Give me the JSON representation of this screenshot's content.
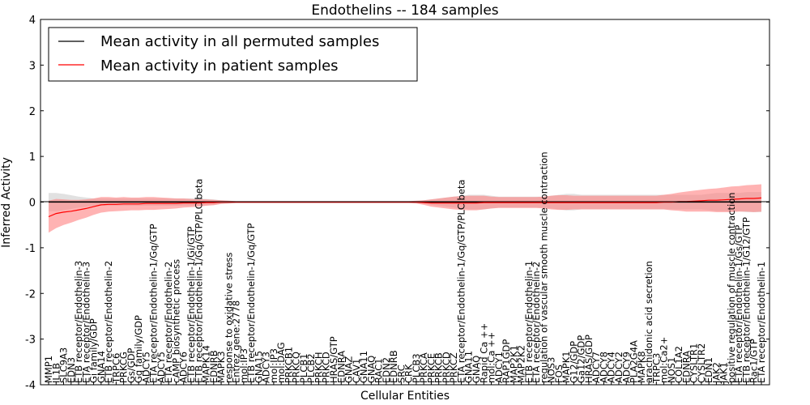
{
  "chart_data": {
    "type": "line",
    "title": "Endothelins -- 184 samples",
    "xlabel": "Cellular Entities",
    "ylabel": "Inferred Activity",
    "ylim": [
      -4,
      4
    ],
    "yticks": [
      -4,
      -3,
      -2,
      -1,
      0,
      1,
      2,
      3,
      4
    ],
    "grid": false,
    "legend_position": "top-left",
    "categories": [
      "MMP1",
      "IL1B",
      "SLC9A3",
      "EDN3",
      "ETB receptor/Endothelin-3",
      "ETA receptor/Endothelin-3",
      "Gi family/GDP",
      "GNA14",
      "ETB receptor/Endothelin-2",
      "TRPC6",
      "PRKCG",
      "Gs/GDP",
      "Gq family/GDP",
      "ADCY5",
      "ETA receptor/Endothelin-1/Gq/GTP",
      "ADCY5",
      "ETA receptor/Endothelin-2",
      "cAMP biosynthetic process",
      "ADCY6",
      "ETB receptor/Endothelin-1/Gi/GTP",
      "ETB receptor/Endothelin-1/Gq/GTP/PLC beta",
      "MAPK14",
      "EDNRB",
      "MAPK3",
      "response to oxidative stress",
      "Entrez gene:2778",
      "mol:IP3",
      "ETB receptor/Endothelin-1/Gq/GTP",
      "GNA15",
      "ADCY3",
      "mol:IP3",
      "mol:DAG",
      "PRKCB1",
      "PRKCQ",
      "PLCB1",
      "PLCB2",
      "PRKCH",
      "PRKCD",
      "HRAS/GTP",
      "EDNRA",
      "GNAZ",
      "CAV1",
      "GNA11",
      "GNAQ",
      "RAC1",
      "EDN2",
      "EDNRB",
      "SRC",
      "CRK",
      "PLCB3",
      "PRKCA",
      "PRKCE",
      "PRKCB",
      "PRKCD",
      "PRKCZ",
      "ETA receptor/Endothelin-1/Gq/GTP/PLC beta",
      "GNA11",
      "GNAQ",
      "Rapid Ca ++",
      "mol:Ca ++",
      "ADCY1",
      "RAP1GDP",
      "MAP2K1",
      "MAP2K2",
      "ETB receptor/Endothelin-1",
      "ETA receptor/Endothelin-2",
      "regulation of vascular smooth muscle contraction",
      "NOS3",
      "FOS",
      "MAPK1",
      "G12/GDP",
      "Ga12/GDP",
      "HRAS/GDP",
      "ADCY7",
      "ADCY8",
      "ADCY4",
      "ADCY2",
      "ADCY9",
      "PLA2G4A",
      "MAPK8",
      "arachidonic acid secretion",
      "TRPC3",
      "mol:Ca2+",
      "NOS1",
      "COL1A2",
      "EDNRA",
      "CYSLTR1",
      "CYSLTR2",
      "EDN1",
      "JAK2",
      "JAK1",
      "positive regulation of muscle contraction",
      "ETA receptor/Endothelin-1/Gs/GTP",
      "ETB receptor/Endothelin-1/G12/GTP",
      "Rac1/GTP",
      "ETA receptor/Endothelin-1"
    ],
    "series": [
      {
        "name": "Mean activity in all permuted samples",
        "color": "#000000",
        "values": [
          0.0,
          0.0,
          0.0,
          0.0,
          0.0,
          0.0,
          0.0,
          0.0,
          0.0,
          0.0,
          0.0,
          0.0,
          0.0,
          0.0,
          0.0,
          0.0,
          0.0,
          0.0,
          0.0,
          0.0,
          0.0,
          0.0,
          0.0,
          0.0,
          0.0,
          0.0,
          0.0,
          0.0,
          0.0,
          0.0,
          0.0,
          0.0,
          0.0,
          0.0,
          0.0,
          0.0,
          0.0,
          0.0,
          0.0,
          0.0,
          0.0,
          0.0,
          0.0,
          0.0,
          0.0,
          0.0,
          0.0,
          0.0,
          0.0,
          0.0,
          0.0,
          0.0,
          0.0,
          0.0,
          0.0,
          0.0,
          0.0,
          0.0,
          0.0,
          0.0,
          0.0,
          0.0,
          0.0,
          0.0,
          0.0,
          0.0,
          0.0,
          0.0,
          0.0,
          0.0,
          0.0,
          0.0,
          0.0,
          0.0,
          0.0,
          0.0,
          0.0,
          0.0,
          0.0,
          0.0,
          0.0,
          0.0,
          0.0,
          0.0,
          0.0,
          0.0,
          0.0,
          0.0,
          0.0,
          0.0,
          0.0,
          0.0,
          0.0,
          0.0,
          0.0,
          0.0
        ],
        "band": [
          0.2,
          0.2,
          0.18,
          0.15,
          0.12,
          0.1,
          0.08,
          0.08,
          0.08,
          0.08,
          0.08,
          0.08,
          0.08,
          0.08,
          0.08,
          0.08,
          0.08,
          0.08,
          0.08,
          0.08,
          0.08,
          0.07,
          0.06,
          0.04,
          0.03,
          0.02,
          0.02,
          0.02,
          0.02,
          0.02,
          0.02,
          0.02,
          0.02,
          0.02,
          0.02,
          0.02,
          0.02,
          0.02,
          0.02,
          0.02,
          0.02,
          0.02,
          0.02,
          0.02,
          0.02,
          0.02,
          0.02,
          0.02,
          0.02,
          0.02,
          0.04,
          0.06,
          0.08,
          0.1,
          0.12,
          0.14,
          0.16,
          0.16,
          0.16,
          0.14,
          0.12,
          0.12,
          0.12,
          0.12,
          0.12,
          0.12,
          0.12,
          0.14,
          0.16,
          0.18,
          0.18,
          0.16,
          0.16,
          0.16,
          0.16,
          0.16,
          0.16,
          0.16,
          0.16,
          0.16,
          0.16,
          0.16,
          0.16,
          0.16,
          0.16,
          0.16,
          0.16,
          0.16,
          0.18,
          0.2,
          0.2,
          0.2,
          0.2,
          0.22,
          0.22,
          0.22
        ]
      },
      {
        "name": "Mean activity in patient samples",
        "color": "#ff0000",
        "values": [
          -0.32,
          -0.25,
          -0.22,
          -0.2,
          -0.17,
          -0.14,
          -0.1,
          -0.06,
          -0.05,
          -0.05,
          -0.04,
          -0.04,
          -0.04,
          -0.03,
          -0.03,
          -0.03,
          -0.03,
          -0.03,
          -0.02,
          -0.02,
          -0.02,
          -0.01,
          -0.01,
          0.0,
          0.0,
          0.0,
          0.0,
          0.0,
          0.0,
          0.0,
          0.0,
          0.0,
          0.0,
          0.0,
          0.0,
          0.0,
          0.0,
          0.0,
          0.0,
          0.0,
          0.0,
          0.0,
          0.0,
          0.0,
          0.0,
          0.0,
          0.0,
          0.0,
          0.0,
          0.0,
          -0.01,
          -0.02,
          -0.02,
          -0.02,
          -0.02,
          -0.02,
          -0.02,
          -0.02,
          -0.01,
          -0.01,
          -0.01,
          -0.01,
          -0.01,
          -0.01,
          -0.01,
          -0.01,
          -0.01,
          -0.01,
          -0.01,
          -0.01,
          -0.01,
          -0.01,
          -0.01,
          -0.01,
          -0.01,
          -0.01,
          -0.01,
          -0.01,
          -0.01,
          -0.01,
          -0.01,
          -0.01,
          0.0,
          0.0,
          0.01,
          0.01,
          0.02,
          0.03,
          0.04,
          0.04,
          0.05,
          0.06,
          0.07,
          0.08,
          0.08,
          0.09
        ],
        "band": [
          0.35,
          0.32,
          0.28,
          0.25,
          0.22,
          0.2,
          0.18,
          0.17,
          0.16,
          0.15,
          0.15,
          0.14,
          0.14,
          0.14,
          0.14,
          0.13,
          0.12,
          0.11,
          0.1,
          0.09,
          0.08,
          0.07,
          0.06,
          0.04,
          0.03,
          0.02,
          0.02,
          0.02,
          0.02,
          0.02,
          0.02,
          0.02,
          0.02,
          0.02,
          0.02,
          0.02,
          0.02,
          0.02,
          0.02,
          0.02,
          0.02,
          0.02,
          0.02,
          0.02,
          0.02,
          0.02,
          0.02,
          0.02,
          0.02,
          0.03,
          0.05,
          0.08,
          0.1,
          0.12,
          0.14,
          0.15,
          0.16,
          0.16,
          0.15,
          0.13,
          0.12,
          0.12,
          0.12,
          0.12,
          0.12,
          0.12,
          0.13,
          0.15,
          0.16,
          0.16,
          0.15,
          0.15,
          0.15,
          0.15,
          0.15,
          0.15,
          0.15,
          0.15,
          0.15,
          0.15,
          0.15,
          0.15,
          0.16,
          0.18,
          0.2,
          0.22,
          0.23,
          0.24,
          0.25,
          0.26,
          0.27,
          0.28,
          0.28,
          0.29,
          0.3,
          0.3
        ]
      }
    ]
  },
  "colors": {
    "band_permuted": "#c8c8c8",
    "band_patient": "#ff8080"
  }
}
